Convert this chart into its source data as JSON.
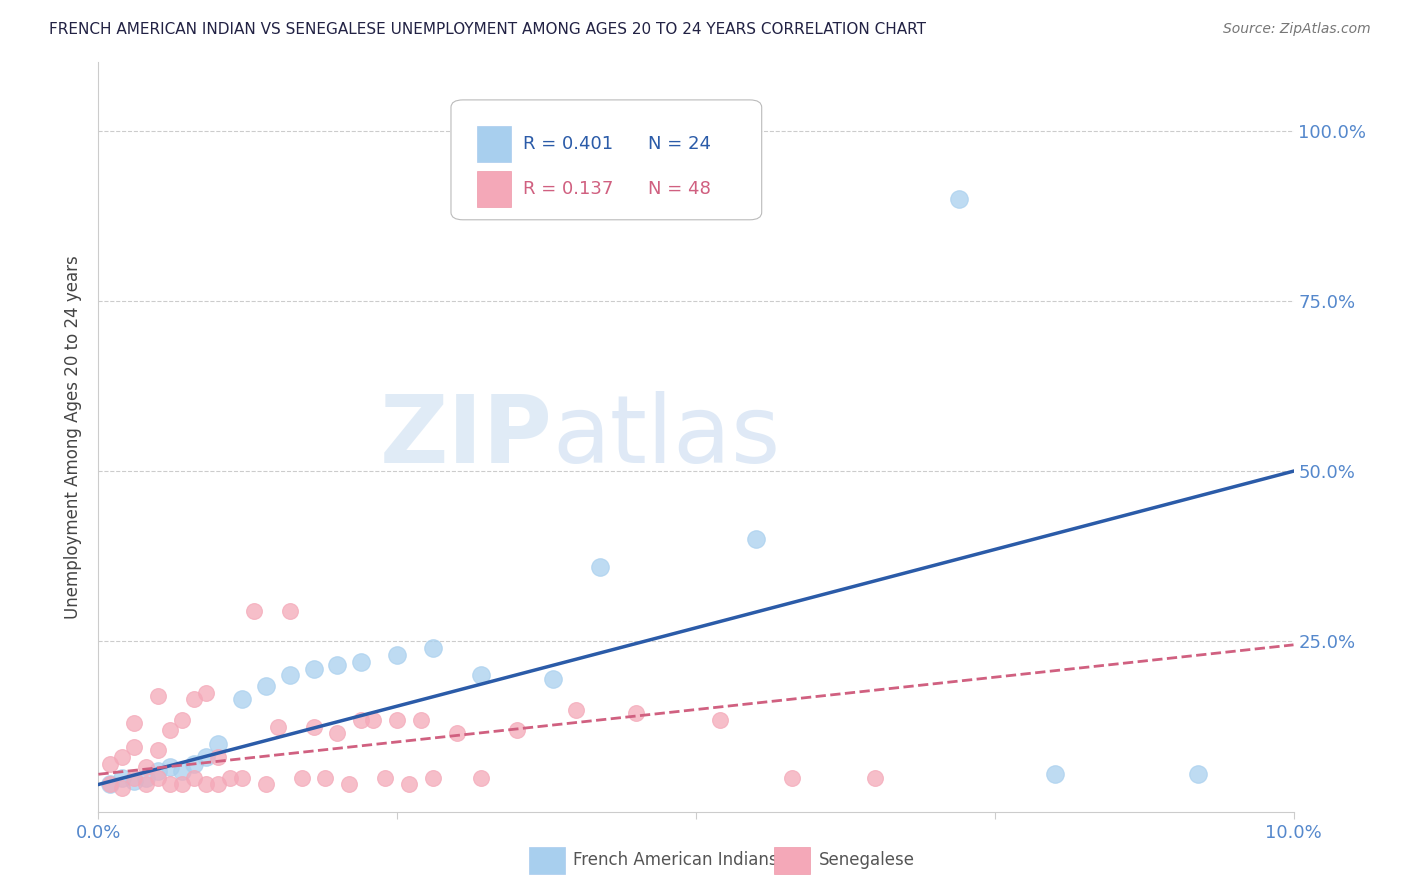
{
  "title": "FRENCH AMERICAN INDIAN VS SENEGALESE UNEMPLOYMENT AMONG AGES 20 TO 24 YEARS CORRELATION CHART",
  "source": "Source: ZipAtlas.com",
  "ylabel": "Unemployment Among Ages 20 to 24 years",
  "xlim": [
    0.0,
    0.1
  ],
  "ylim": [
    0.0,
    1.1
  ],
  "R_blue": 0.401,
  "N_blue": 24,
  "R_pink": 0.137,
  "N_pink": 48,
  "blue_color": "#A8CFEE",
  "pink_color": "#F4A8B8",
  "blue_line_color": "#2B5BA8",
  "pink_line_color": "#D06080",
  "axis_color": "#5588CC",
  "grid_color": "#CCCCCC",
  "watermark_zip": "ZIP",
  "watermark_atlas": "atlas",
  "blue_trend_x0": 0.0,
  "blue_trend_y0": 0.04,
  "blue_trend_x1": 0.1,
  "blue_trend_y1": 0.5,
  "pink_trend_x0": 0.0,
  "pink_trend_y0": 0.055,
  "pink_trend_x1": 0.1,
  "pink_trend_y1": 0.245,
  "blue_scatter_x": [
    0.001,
    0.002,
    0.003,
    0.004,
    0.005,
    0.006,
    0.007,
    0.008,
    0.009,
    0.01,
    0.012,
    0.014,
    0.016,
    0.018,
    0.02,
    0.022,
    0.025,
    0.028,
    0.032,
    0.038,
    0.042,
    0.055,
    0.072,
    0.092
  ],
  "blue_scatter_y": [
    0.04,
    0.05,
    0.045,
    0.05,
    0.06,
    0.065,
    0.06,
    0.07,
    0.08,
    0.1,
    0.165,
    0.185,
    0.2,
    0.21,
    0.215,
    0.22,
    0.23,
    0.24,
    0.2,
    0.195,
    0.36,
    0.4,
    0.9,
    0.055
  ],
  "blue_extra_x": [
    0.08
  ],
  "blue_extra_y": [
    0.055
  ],
  "pink_scatter_x": [
    0.001,
    0.001,
    0.002,
    0.002,
    0.003,
    0.003,
    0.003,
    0.004,
    0.004,
    0.005,
    0.005,
    0.005,
    0.006,
    0.006,
    0.007,
    0.007,
    0.008,
    0.008,
    0.009,
    0.009,
    0.01,
    0.01,
    0.011,
    0.012,
    0.013,
    0.014,
    0.015,
    0.016,
    0.017,
    0.018,
    0.019,
    0.02,
    0.021,
    0.022,
    0.023,
    0.024,
    0.025,
    0.026,
    0.027,
    0.028,
    0.03,
    0.032,
    0.035,
    0.04,
    0.045,
    0.052,
    0.058,
    0.065
  ],
  "pink_scatter_y": [
    0.04,
    0.07,
    0.035,
    0.08,
    0.05,
    0.095,
    0.13,
    0.04,
    0.065,
    0.05,
    0.09,
    0.17,
    0.04,
    0.12,
    0.04,
    0.135,
    0.05,
    0.165,
    0.04,
    0.175,
    0.04,
    0.08,
    0.05,
    0.05,
    0.295,
    0.04,
    0.125,
    0.295,
    0.05,
    0.125,
    0.05,
    0.115,
    0.04,
    0.135,
    0.135,
    0.05,
    0.135,
    0.04,
    0.135,
    0.05,
    0.115,
    0.05,
    0.12,
    0.15,
    0.145,
    0.135,
    0.05,
    0.05
  ],
  "legend_R_color_blue": "#2B5BA8",
  "legend_R_color_pink": "#D06080",
  "legend_N_color_blue": "#2B5BA8",
  "legend_N_color_pink": "#D06080"
}
